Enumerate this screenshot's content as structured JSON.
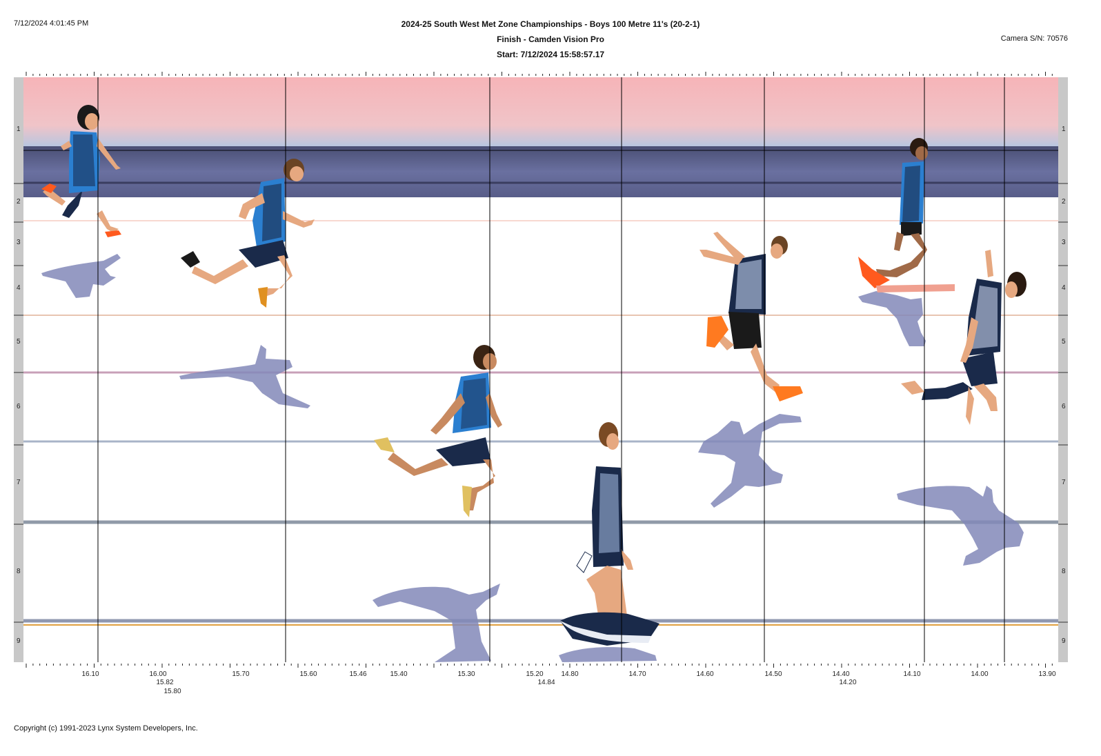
{
  "header": {
    "print_time": "7/12/2024 4:01:45 PM",
    "title": "2024-25 South West Met Zone Championships - Boys 100 Metre 11's (20-2-1)",
    "camera_line": "Finish - Camden Vision Pro",
    "start_line": "Start: 7/12/2024 15:58:57.17",
    "camera_sn": "Camera S/N: 70576"
  },
  "lanes": [
    "1",
    "2",
    "3",
    "4",
    "5",
    "6",
    "7",
    "8",
    "9"
  ],
  "time_labels": [
    {
      "text": "16.10"
    },
    {
      "text": "16.00"
    },
    {
      "text": "15.82"
    },
    {
      "text": "15.80"
    },
    {
      "text": "15.70"
    },
    {
      "text": "15.60"
    },
    {
      "text": "15.46"
    },
    {
      "text": "15.40"
    },
    {
      "text": "15.30"
    },
    {
      "text": "15.20"
    },
    {
      "text": "14.84"
    },
    {
      "text": "14.80"
    },
    {
      "text": "14.70"
    },
    {
      "text": "14.60"
    },
    {
      "text": "14.50"
    },
    {
      "text": "14.40"
    },
    {
      "text": "14.20"
    },
    {
      "text": "14.10"
    },
    {
      "text": "14.00"
    },
    {
      "text": "13.90"
    }
  ],
  "colors": {
    "sky_top": "#f4b8bc",
    "wall": "#5a5f86",
    "track": "#ffffff",
    "lane_line": "#8a90a8",
    "shadow": "#7f86b6",
    "singlet_blue": "#2b7fd0",
    "singlet_dark": "#1a2a4a",
    "skin": "#e6a880",
    "shoe": "#ff5a1e",
    "side_bar": "#c8c8c8"
  },
  "footer": {
    "copyright": "Copyright (c) 1991-2023 Lynx System Developers, Inc."
  }
}
